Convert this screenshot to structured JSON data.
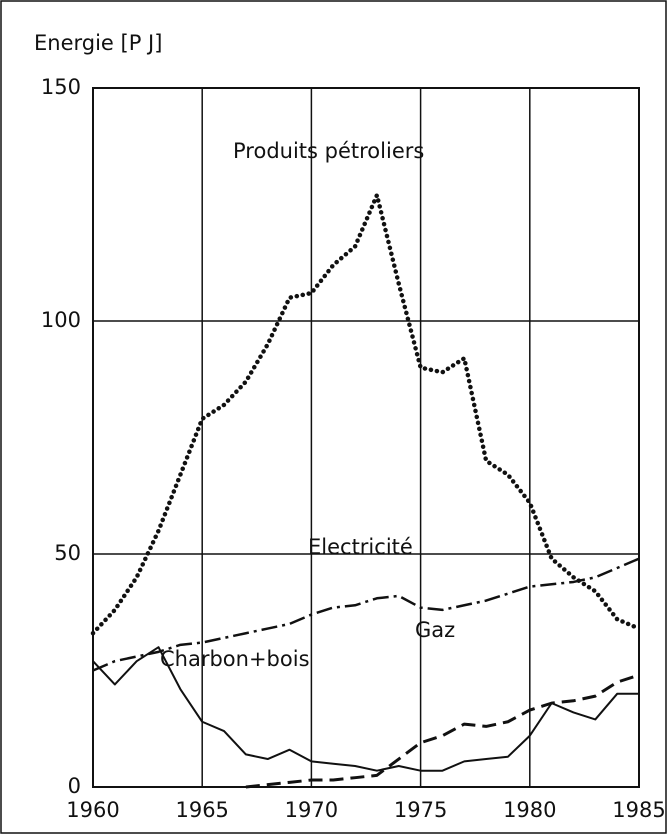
{
  "chart_data": {
    "type": "line",
    "y_label": "Energie [P J]",
    "x": [
      1960,
      1961,
      1962,
      1963,
      1964,
      1965,
      1966,
      1967,
      1968,
      1969,
      1970,
      1971,
      1972,
      1973,
      1974,
      1975,
      1976,
      1977,
      1978,
      1979,
      1980,
      1981,
      1982,
      1983,
      1984,
      1985
    ],
    "series": [
      {
        "name": "Produits pétroliers",
        "color": "#111111",
        "style": "dotted",
        "values": [
          33,
          38,
          45,
          55,
          67,
          79,
          82,
          87,
          95,
          105,
          106,
          112,
          116,
          127,
          108,
          90,
          89,
          92,
          70,
          67,
          61,
          49,
          45,
          42,
          36,
          34
        ]
      },
      {
        "name": "Electricité",
        "color": "#111111",
        "style": "dashdot",
        "values": [
          25,
          27,
          28,
          29,
          30.5,
          31,
          32,
          33,
          34,
          35,
          37,
          38.5,
          39,
          40.5,
          41,
          38.5,
          38,
          39,
          40,
          41.5,
          43,
          43.5,
          44,
          45,
          47,
          49
        ]
      },
      {
        "name": "Charbon+bois",
        "color": "#111111",
        "style": "solid",
        "values": [
          27,
          22,
          27,
          30,
          21,
          14,
          12,
          7,
          6,
          8,
          5.5,
          5,
          4.5,
          3.5,
          4.5,
          3.5,
          3.5,
          5.5,
          6,
          6.5,
          11,
          18,
          16,
          14.5,
          20,
          20
        ]
      },
      {
        "name": "Gaz",
        "color": "#111111",
        "style": "dashed",
        "values": [
          null,
          null,
          null,
          null,
          null,
          null,
          null,
          0,
          0.5,
          1,
          1.5,
          1.5,
          2,
          2.5,
          6,
          9.5,
          11,
          13.5,
          13,
          14,
          16.5,
          18,
          18.5,
          19.5,
          22.5,
          24
        ]
      }
    ],
    "xlim": [
      1960,
      1985
    ],
    "xticks": [
      1960,
      1965,
      1970,
      1975,
      1980,
      1985
    ],
    "ylim": [
      0,
      150
    ],
    "yticks": [
      0,
      50,
      100,
      150
    ],
    "grid": true
  }
}
